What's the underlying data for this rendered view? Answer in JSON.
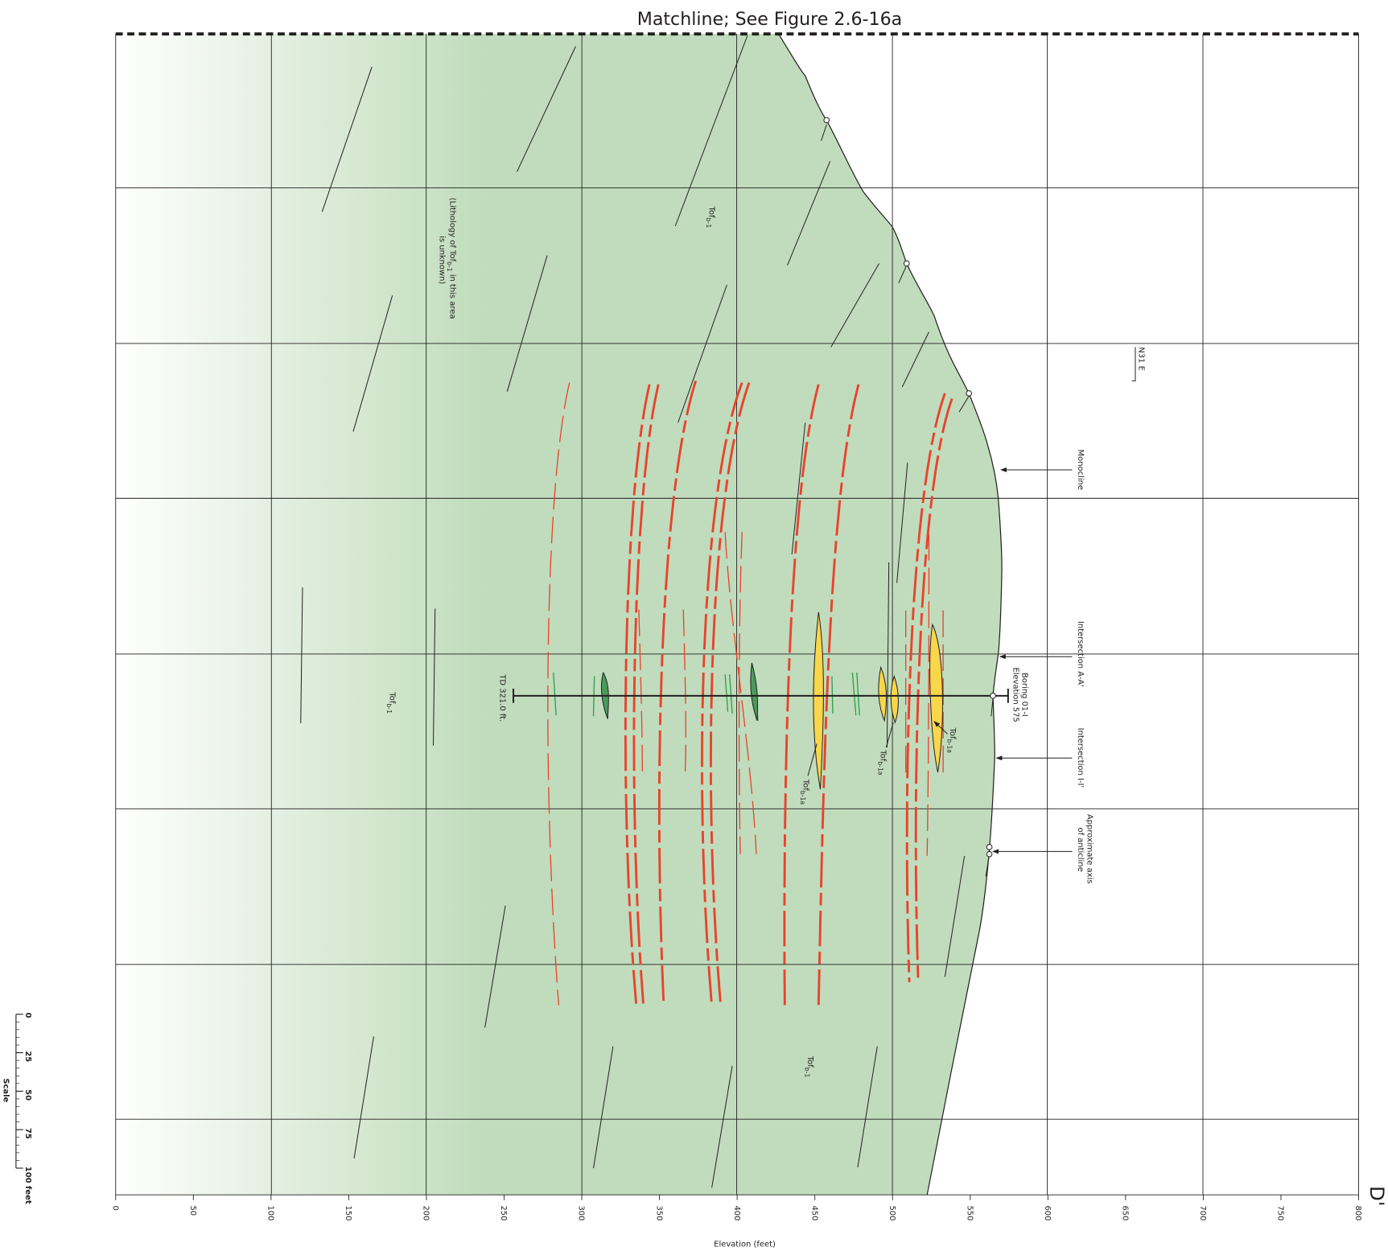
{
  "title": "Matchline; See Figure 2.6-16a",
  "section_label": "D'",
  "elevation_axis": {
    "label": "Elevation (feet)",
    "lim": [
      0,
      800
    ],
    "ticks": [
      0,
      50,
      100,
      150,
      200,
      250,
      300,
      350,
      400,
      450,
      500,
      550,
      600,
      650,
      700,
      750,
      800
    ]
  },
  "scale_bar": {
    "title": "Scale",
    "lim": [
      0,
      100
    ],
    "ticks": [
      0,
      25,
      50,
      75,
      {
        "value": 100,
        "label": "100 feet"
      }
    ]
  },
  "annotations": {
    "monocline": "Monocline",
    "intersection_aa": "Intersection A-A'",
    "intersection_ii": "Intersection I-I'",
    "anticline": [
      "Approximate axis",
      "of anticline"
    ],
    "boring": [
      "Boring  01-I",
      "Elevation 575"
    ],
    "total_depth": "TD 321.0 ft.",
    "strike": "N31 E",
    "lithology_note": [
      [
        "(Lithology of Tof",
        "b-1",
        " in this area"
      ],
      [
        "is unknown)"
      ]
    ]
  },
  "units": [
    {
      "text": "Tof",
      "sub": "b-1"
    },
    {
      "text": "Tof",
      "sub": "b-1"
    },
    {
      "text": "Tof",
      "sub": "b-1"
    },
    {
      "text": "Tof",
      "sub": "b-1a"
    },
    {
      "text": "Tof",
      "sub": "b-1a"
    },
    {
      "text": "Tof",
      "sub": "b-1a"
    }
  ]
}
